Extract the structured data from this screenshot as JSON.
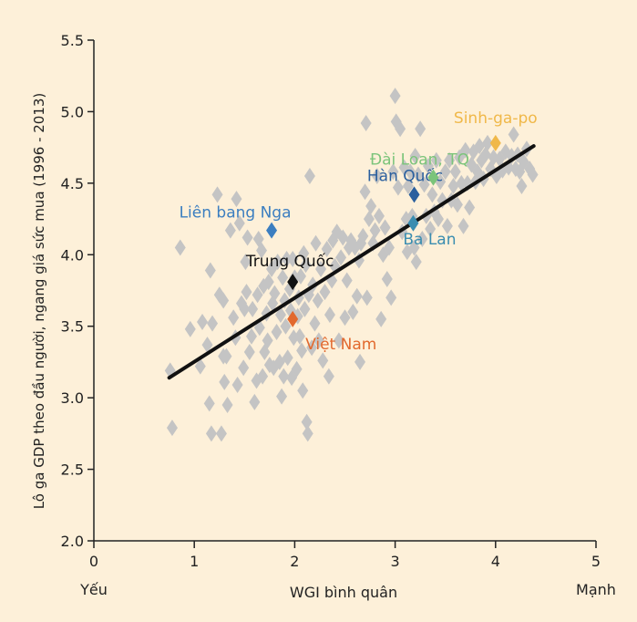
{
  "chart_data": {
    "type": "scatter",
    "xlabel": "WGI bình quân",
    "ylabel": "Lô ga GDP theo đầu người, ngang giá sức mua (1996 - 2013)",
    "x_ticks": [
      "0",
      "1",
      "2",
      "3",
      "4",
      "5"
    ],
    "y_ticks": [
      "2.0",
      "2.5",
      "3.0",
      "3.5",
      "4.0",
      "4.5",
      "5.0",
      "5.5"
    ],
    "x_tick_values": [
      0,
      1,
      2,
      3,
      4,
      5
    ],
    "y_tick_values": [
      2.0,
      2.5,
      3.0,
      3.5,
      4.0,
      4.5,
      5.0,
      5.5
    ],
    "x_end_labels": {
      "left": "Yếu",
      "right": "Mạnh"
    },
    "xlim": [
      0,
      5
    ],
    "ylim": [
      2.0,
      5.5
    ],
    "grid": false,
    "colors": {
      "background": "#fdf0d9",
      "points": "#c4c4c4",
      "axis": "#222222",
      "trend": "#111111"
    },
    "trend_line": {
      "x": [
        0.75,
        4.38
      ],
      "y": [
        3.14,
        4.76
      ]
    },
    "series": [
      {
        "values": [
          [
            0.76,
            3.19
          ],
          [
            0.78,
            2.79
          ],
          [
            0.86,
            4.05
          ],
          [
            0.96,
            3.48
          ],
          [
            1.06,
            3.22
          ],
          [
            1.08,
            3.53
          ],
          [
            1.13,
            3.37
          ],
          [
            1.15,
            2.96
          ],
          [
            1.16,
            3.89
          ],
          [
            1.17,
            2.75
          ],
          [
            1.18,
            3.52
          ],
          [
            1.23,
            4.42
          ],
          [
            1.25,
            3.72
          ],
          [
            1.27,
            2.75
          ],
          [
            1.29,
            3.29
          ],
          [
            1.29,
            3.68
          ],
          [
            1.3,
            3.11
          ],
          [
            1.32,
            3.29
          ],
          [
            1.33,
            2.95
          ],
          [
            1.36,
            4.17
          ],
          [
            1.39,
            3.56
          ],
          [
            1.41,
            3.42
          ],
          [
            1.42,
            4.39
          ],
          [
            1.43,
            3.09
          ],
          [
            1.45,
            4.22
          ],
          [
            1.47,
            3.66
          ],
          [
            1.49,
            3.21
          ],
          [
            1.5,
            3.62
          ],
          [
            1.51,
            3.95
          ],
          [
            1.52,
            3.74
          ],
          [
            1.53,
            4.12
          ],
          [
            1.55,
            3.32
          ],
          [
            1.57,
            3.43
          ],
          [
            1.58,
            3.62
          ],
          [
            1.6,
            2.97
          ],
          [
            1.62,
            3.12
          ],
          [
            1.63,
            3.72
          ],
          [
            1.64,
            4.11
          ],
          [
            1.65,
            3.49
          ],
          [
            1.67,
            4.03
          ],
          [
            1.68,
            3.15
          ],
          [
            1.69,
            3.78
          ],
          [
            1.7,
            3.32
          ],
          [
            1.72,
            3.59
          ],
          [
            1.73,
            3.4
          ],
          [
            1.74,
            3.81
          ],
          [
            1.75,
            3.23
          ],
          [
            1.77,
            3.9
          ],
          [
            1.78,
            3.66
          ],
          [
            1.79,
            3.21
          ],
          [
            1.8,
            3.73
          ],
          [
            1.82,
            3.46
          ],
          [
            1.83,
            3.95
          ],
          [
            1.85,
            3.25
          ],
          [
            1.86,
            3.58
          ],
          [
            1.87,
            3.01
          ],
          [
            1.88,
            3.84
          ],
          [
            1.89,
            3.15
          ],
          [
            1.9,
            3.68
          ],
          [
            1.91,
            3.5
          ],
          [
            1.92,
            3.97
          ],
          [
            1.93,
            3.28
          ],
          [
            1.95,
            3.76
          ],
          [
            1.96,
            3.61
          ],
          [
            1.97,
            3.14
          ],
          [
            1.98,
            3.97
          ],
          [
            1.99,
            3.42
          ],
          [
            2.0,
            3.84
          ],
          [
            2.02,
            3.2
          ],
          [
            2.03,
            3.57
          ],
          [
            2.04,
            3.7
          ],
          [
            2.05,
            3.43
          ],
          [
            2.06,
            3.85
          ],
          [
            2.07,
            3.33
          ],
          [
            2.08,
            3.05
          ],
          [
            2.09,
            4.01
          ],
          [
            2.1,
            3.62
          ],
          [
            2.11,
            3.93
          ],
          [
            2.12,
            2.83
          ],
          [
            2.13,
            2.75
          ],
          [
            2.14,
            3.72
          ],
          [
            2.15,
            4.55
          ],
          [
            2.17,
            3.35
          ],
          [
            2.18,
            3.79
          ],
          [
            2.2,
            3.52
          ],
          [
            2.21,
            4.08
          ],
          [
            2.23,
            3.68
          ],
          [
            2.24,
            3.4
          ],
          [
            2.26,
            3.9
          ],
          [
            2.28,
            3.26
          ],
          [
            2.3,
            3.74
          ],
          [
            2.32,
            4.04
          ],
          [
            2.34,
            3.15
          ],
          [
            2.35,
            3.58
          ],
          [
            2.37,
            3.82
          ],
          [
            2.38,
            4.1
          ],
          [
            2.4,
            3.92
          ],
          [
            2.42,
            4.16
          ],
          [
            2.44,
            3.4
          ],
          [
            2.46,
            3.98
          ],
          [
            2.48,
            4.12
          ],
          [
            2.5,
            3.56
          ],
          [
            2.52,
            3.82
          ],
          [
            2.54,
            4.05
          ],
          [
            2.56,
            4.1
          ],
          [
            2.58,
            3.6
          ],
          [
            2.6,
            4.05
          ],
          [
            2.62,
            3.71
          ],
          [
            2.64,
            3.96
          ],
          [
            2.65,
            3.25
          ],
          [
            2.66,
            4.08
          ],
          [
            2.68,
            4.13
          ],
          [
            2.7,
            4.44
          ],
          [
            2.71,
            4.92
          ],
          [
            2.72,
            3.7
          ],
          [
            2.74,
            4.25
          ],
          [
            2.76,
            4.34
          ],
          [
            2.78,
            4.08
          ],
          [
            2.8,
            4.17
          ],
          [
            2.82,
            4.55
          ],
          [
            2.84,
            4.27
          ],
          [
            2.86,
            3.55
          ],
          [
            2.88,
            4.0
          ],
          [
            2.9,
            4.19
          ],
          [
            2.92,
            3.83
          ],
          [
            2.94,
            4.05
          ],
          [
            2.96,
            3.7
          ],
          [
            2.98,
            4.58
          ],
          [
            3.0,
            5.11
          ],
          [
            3.01,
            4.93
          ],
          [
            3.03,
            4.47
          ],
          [
            3.05,
            4.88
          ],
          [
            3.07,
            4.16
          ],
          [
            3.09,
            4.61
          ],
          [
            3.11,
            4.25
          ],
          [
            3.12,
            4.02
          ],
          [
            3.13,
            4.48
          ],
          [
            3.15,
            4.58
          ],
          [
            3.17,
            4.27
          ],
          [
            3.19,
            4.05
          ],
          [
            3.2,
            4.69
          ],
          [
            3.21,
            3.95
          ],
          [
            3.23,
            4.56
          ],
          [
            3.25,
            4.88
          ],
          [
            3.27,
            4.11
          ],
          [
            3.29,
            4.49
          ],
          [
            3.31,
            4.27
          ],
          [
            3.33,
            4.62
          ],
          [
            3.35,
            4.18
          ],
          [
            3.37,
            4.42
          ],
          [
            3.39,
            4.3
          ],
          [
            3.41,
            4.66
          ],
          [
            3.43,
            4.25
          ],
          [
            3.45,
            4.51
          ],
          [
            3.47,
            4.38
          ],
          [
            3.5,
            4.58
          ],
          [
            3.52,
            4.2
          ],
          [
            3.54,
            4.66
          ],
          [
            3.56,
            4.38
          ],
          [
            3.58,
            4.48
          ],
          [
            3.6,
            4.58
          ],
          [
            3.62,
            4.35
          ],
          [
            3.64,
            4.68
          ],
          [
            3.66,
            4.5
          ],
          [
            3.68,
            4.2
          ],
          [
            3.7,
            4.73
          ],
          [
            3.72,
            4.5
          ],
          [
            3.74,
            4.33
          ],
          [
            3.76,
            4.63
          ],
          [
            3.78,
            4.72
          ],
          [
            3.8,
            4.51
          ],
          [
            3.82,
            4.58
          ],
          [
            3.84,
            4.76
          ],
          [
            3.86,
            4.66
          ],
          [
            3.88,
            4.53
          ],
          [
            3.9,
            4.7
          ],
          [
            3.92,
            4.78
          ],
          [
            3.95,
            4.6
          ],
          [
            3.98,
            4.68
          ],
          [
            4.01,
            4.55
          ],
          [
            4.04,
            4.67
          ],
          [
            4.07,
            4.59
          ],
          [
            4.1,
            4.72
          ],
          [
            4.13,
            4.61
          ],
          [
            4.16,
            4.69
          ],
          [
            4.18,
            4.84
          ],
          [
            4.2,
            4.6
          ],
          [
            4.22,
            4.7
          ],
          [
            4.24,
            4.58
          ],
          [
            4.26,
            4.48
          ],
          [
            4.28,
            4.65
          ],
          [
            4.31,
            4.74
          ],
          [
            4.34,
            4.6
          ],
          [
            4.37,
            4.56
          ]
        ]
      }
    ],
    "highlighted": [
      {
        "label": "Liên bang Nga",
        "x": 1.77,
        "y": 4.17,
        "color": "#3b7ec0"
      },
      {
        "label": "Hàn Quốc",
        "x": 3.19,
        "y": 4.42,
        "color": "#2a5f9e"
      },
      {
        "label": "Đài Loan, TQ",
        "x": 3.38,
        "y": 4.54,
        "color": "#7bc47a"
      },
      {
        "label": "Sinh-ga-po",
        "x": 4.0,
        "y": 4.78,
        "color": "#f0b849"
      },
      {
        "label": "Ba Lan",
        "x": 3.18,
        "y": 4.22,
        "color": "#3a8db0"
      },
      {
        "label": "Trung Quốc",
        "x": 1.98,
        "y": 3.81,
        "color": "#111111"
      },
      {
        "label": "Việt Nam",
        "x": 1.98,
        "y": 3.55,
        "color": "#e2692e"
      }
    ]
  }
}
